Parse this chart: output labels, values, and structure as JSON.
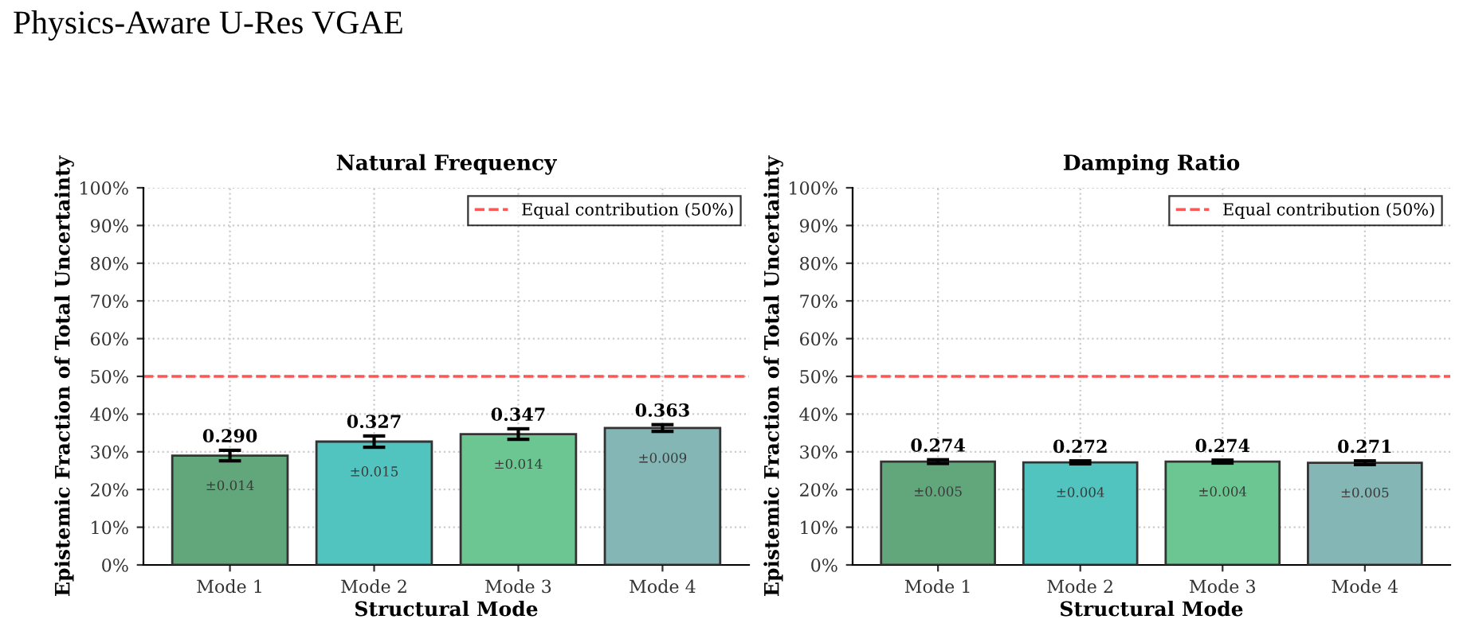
{
  "chart_data": [
    {
      "type": "bar",
      "title": "Natural Frequency",
      "xlabel": "Structural Mode",
      "ylabel": "Epistemic Fraction of Total Uncertainty",
      "categories": [
        "Mode 1",
        "Mode 2",
        "Mode 3",
        "Mode 4"
      ],
      "values": [
        0.29,
        0.327,
        0.347,
        0.363
      ],
      "errors": [
        0.014,
        0.015,
        0.014,
        0.009
      ],
      "colors": [
        "#62a67c",
        "#52c4c0",
        "#6cc692",
        "#84b6b6"
      ],
      "value_labels": [
        "0.290",
        "0.327",
        "0.347",
        "0.363"
      ],
      "ylim": [
        0,
        1
      ],
      "yticks": [
        {
          "value": 0,
          "label": "0%"
        },
        {
          "value": 0.1,
          "label": "10%"
        },
        {
          "value": 0.2,
          "label": "20%"
        },
        {
          "value": 0.3,
          "label": "30%"
        },
        {
          "value": 0.4,
          "label": "40%"
        },
        {
          "value": 0.5,
          "label": "50%"
        },
        {
          "value": 0.6,
          "label": "60%"
        },
        {
          "value": 0.7,
          "label": "70%"
        },
        {
          "value": 0.8,
          "label": "80%"
        },
        {
          "value": 0.9,
          "label": "90%"
        },
        {
          "value": 1,
          "label": "100%"
        }
      ],
      "ref_lines": [
        {
          "axis": "y",
          "value": 0.5,
          "label": "Equal contribution (50%)",
          "color": "#ff4444",
          "line_style": "dashed"
        }
      ],
      "annotations": [
        "±0.014",
        "±0.015",
        "±0.014",
        "±0.009",
        "Physics-Aware U-Res VGAE"
      ],
      "grid": true,
      "legend": "top right"
    },
    {
      "type": "bar",
      "title": "Damping Ratio",
      "xlabel": "Structural Mode",
      "ylabel": "Epistemic Fraction of Total Uncertainty",
      "categories": [
        "Mode 1",
        "Mode 2",
        "Mode 3",
        "Mode 4"
      ],
      "values": [
        0.274,
        0.272,
        0.274,
        0.271
      ],
      "errors": [
        0.005,
        0.004,
        0.004,
        0.005
      ],
      "colors": [
        "#62a67c",
        "#52c4c0",
        "#6cc692",
        "#84b6b6"
      ],
      "value_labels": [
        "0.274",
        "0.272",
        "0.274",
        "0.271"
      ],
      "ylim": [
        0,
        1
      ],
      "yticks": [
        {
          "value": 0,
          "label": "0%"
        },
        {
          "value": 0.1,
          "label": "10%"
        },
        {
          "value": 0.2,
          "label": "20%"
        },
        {
          "value": 0.3,
          "label": "30%"
        },
        {
          "value": 0.4,
          "label": "40%"
        },
        {
          "value": 0.5,
          "label": "50%"
        },
        {
          "value": 0.6,
          "label": "60%"
        },
        {
          "value": 0.7,
          "label": "70%"
        },
        {
          "value": 0.8,
          "label": "80%"
        },
        {
          "value": 0.9,
          "label": "90%"
        },
        {
          "value": 1,
          "label": "100%"
        }
      ],
      "ref_lines": [
        {
          "axis": "y",
          "value": 0.5,
          "label": "Equal contribution (50%)",
          "color": "#ff4444",
          "line_style": "dashed"
        }
      ],
      "annotations": [
        "±0.005",
        "±0.004",
        "±0.004",
        "±0.005"
      ],
      "grid": true,
      "legend": "top right"
    }
  ]
}
